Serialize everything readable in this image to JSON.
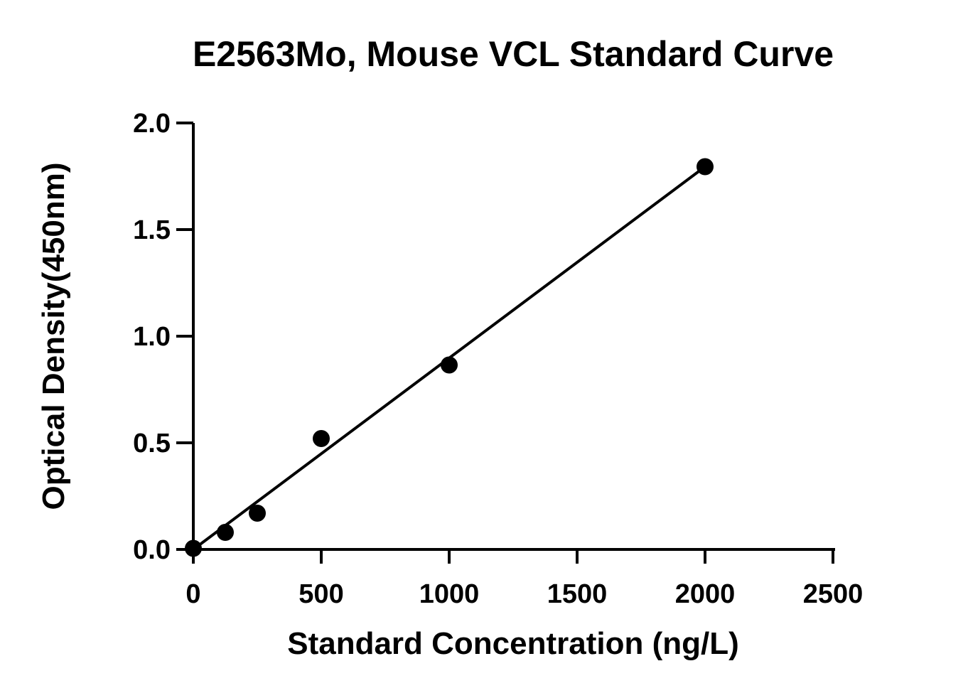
{
  "chart_data": {
    "type": "scatter",
    "title": "E2563Mo, Mouse VCL Standard Curve",
    "xlabel": "Standard Concentration (ng/L)",
    "ylabel": "Optical Density(450nm)",
    "xlim": [
      0,
      2500
    ],
    "ylim": [
      0,
      2.0
    ],
    "xticks": [
      0,
      500,
      1000,
      1500,
      2000,
      2500
    ],
    "yticks": [
      0.0,
      0.5,
      1.0,
      1.5,
      2.0
    ],
    "xtick_labels": [
      "0",
      "500",
      "1000",
      "1500",
      "2000",
      "2500"
    ],
    "ytick_labels": [
      "0.0",
      "0.5",
      "1.0",
      "1.5",
      "2.0"
    ],
    "grid": false,
    "series": [
      {
        "x": [
          0,
          125,
          250,
          500,
          1000,
          2000
        ],
        "y": [
          0.005,
          0.08,
          0.17,
          0.52,
          0.865,
          1.795
        ],
        "marker": "circle",
        "color": "#000000"
      }
    ],
    "fit_line": {
      "type": "linear",
      "x": [
        0,
        2000
      ],
      "y": [
        0.0,
        1.795
      ],
      "color": "#000000"
    }
  }
}
